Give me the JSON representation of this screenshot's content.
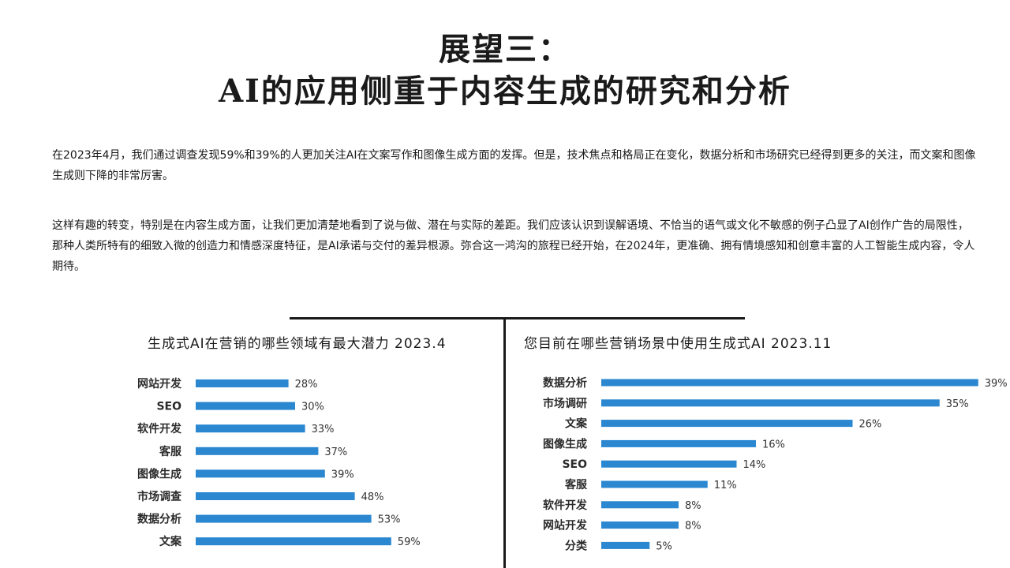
{
  "heading": {
    "line1": "展望三：",
    "line2": "AI的应用侧重于内容生成的研究和分析"
  },
  "paragraphs": [
    "在2023年4月，我们通过调查发现59%和39%的人更加关注AI在文案写作和图像生成方面的发挥。但是，技术焦点和格局正在变化，数据分析和市场研究已经得到更多的关注，而文案和图像生成则下降的非常厉害。",
    "这样有趣的转变，特别是在内容生成方面，让我们更加清楚地看到了说与做、潜在与实际的差距。我们应该认识到误解语境、不恰当的语气或文化不敏感的例子凸显了AI创作广告的局限性，那种人类所特有的细致入微的创造力和情感深度特征，是AI承诺与交付的差异根源。弥合这一鸿沟的旅程已经开始，在2024年，更准确、拥有情境感知和创意丰富的人工智能生成内容，令人期待。"
  ],
  "chart_data": [
    {
      "type": "bar",
      "orientation": "horizontal",
      "title": "生成式AI在营销的哪些领域有最大潜力 2023.4",
      "categories": [
        "网站开发",
        "SEO",
        "软件开发",
        "客服",
        "图像生成",
        "市场调查",
        "数据分析",
        "文案"
      ],
      "values": [
        28,
        30,
        33,
        37,
        39,
        48,
        53,
        59
      ],
      "value_labels": [
        "28%",
        "30%",
        "33%",
        "37%",
        "39%",
        "48%",
        "53%",
        "59%"
      ],
      "unit": "%",
      "xlim": [
        0,
        100
      ],
      "grid": false,
      "bar_color": "#2a87d0"
    },
    {
      "type": "bar",
      "orientation": "horizontal",
      "title": "您目前在哪些营销场景中使用生成式AI 2023.11",
      "categories": [
        "数据分析",
        "市场调研",
        "文案",
        "图像生成",
        "SEO",
        "客服",
        "软件开发",
        "网站开发",
        "分类"
      ],
      "values": [
        39,
        35,
        26,
        16,
        14,
        11,
        8,
        8,
        5
      ],
      "value_labels": [
        "39%",
        "35%",
        "26%",
        "16%",
        "14%",
        "11%",
        "8%",
        "8%",
        "5%"
      ],
      "unit": "%",
      "xlim": [
        0,
        40
      ],
      "grid": false,
      "bar_color": "#2a87d0"
    }
  ]
}
